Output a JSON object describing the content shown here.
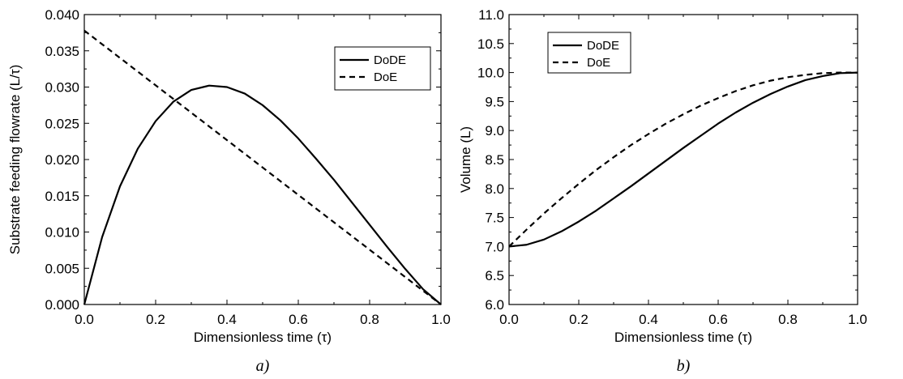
{
  "chart_data": [
    {
      "type": "line",
      "panel_label": "a)",
      "xlabel": "Dimensionless time (τ)",
      "ylabel": "Substrate feeding flowrate (L/τ)",
      "xlim": [
        0.0,
        1.0
      ],
      "ylim": [
        0.0,
        0.04
      ],
      "xticks": [
        "0.0",
        "0.2",
        "0.4",
        "0.6",
        "0.8",
        "1.0"
      ],
      "yticks": [
        "0.000",
        "0.005",
        "0.010",
        "0.015",
        "0.020",
        "0.025",
        "0.030",
        "0.035",
        "0.040"
      ],
      "grid": false,
      "legend": {
        "position": "top-right",
        "entries": [
          "DoDE",
          "DoE"
        ]
      },
      "series": [
        {
          "name": "DoDE",
          "style": "solid",
          "x": [
            0.0,
            0.05,
            0.1,
            0.15,
            0.2,
            0.25,
            0.3,
            0.35,
            0.4,
            0.45,
            0.5,
            0.55,
            0.6,
            0.65,
            0.7,
            0.75,
            0.8,
            0.85,
            0.9,
            0.95,
            1.0
          ],
          "y": [
            0.0,
            0.0093,
            0.0163,
            0.0215,
            0.0253,
            0.028,
            0.0296,
            0.0302,
            0.03,
            0.0291,
            0.0275,
            0.0254,
            0.0229,
            0.0201,
            0.0172,
            0.0141,
            0.011,
            0.0079,
            0.0049,
            0.0021,
            0.0
          ]
        },
        {
          "name": "DoE",
          "style": "dashed",
          "x": [
            0.0,
            1.0
          ],
          "y": [
            0.0378,
            0.0
          ]
        }
      ]
    },
    {
      "type": "line",
      "panel_label": "b)",
      "xlabel": "Dimensionless time (τ)",
      "ylabel": "Volume (L)",
      "xlim": [
        0.0,
        1.0
      ],
      "ylim": [
        6.0,
        11.0
      ],
      "xticks": [
        "0.0",
        "0.2",
        "0.4",
        "0.6",
        "0.8",
        "1.0"
      ],
      "yticks": [
        "6.0",
        "6.5",
        "7.0",
        "7.5",
        "8.0",
        "8.5",
        "9.0",
        "9.5",
        "10.0",
        "10.5",
        "11.0"
      ],
      "grid": false,
      "legend": {
        "position": "top-left",
        "entries": [
          "DoDE",
          "DoE"
        ]
      },
      "series": [
        {
          "name": "DoDE",
          "style": "solid",
          "x": [
            0.0,
            0.05,
            0.1,
            0.15,
            0.2,
            0.25,
            0.3,
            0.35,
            0.4,
            0.45,
            0.5,
            0.55,
            0.6,
            0.65,
            0.7,
            0.75,
            0.8,
            0.85,
            0.9,
            0.95,
            1.0
          ],
          "y": [
            7.0,
            7.03,
            7.12,
            7.26,
            7.43,
            7.62,
            7.83,
            8.04,
            8.26,
            8.48,
            8.7,
            8.91,
            9.12,
            9.31,
            9.48,
            9.63,
            9.76,
            9.87,
            9.94,
            9.99,
            10.0
          ]
        },
        {
          "name": "DoE",
          "style": "dashed",
          "x": [
            0.0,
            0.05,
            0.1,
            0.15,
            0.2,
            0.25,
            0.3,
            0.35,
            0.4,
            0.45,
            0.5,
            0.55,
            0.6,
            0.65,
            0.7,
            0.75,
            0.8,
            0.85,
            0.9,
            0.95,
            1.0
          ],
          "y": [
            7.0,
            7.29,
            7.57,
            7.83,
            8.08,
            8.32,
            8.54,
            8.75,
            8.94,
            9.12,
            9.28,
            9.43,
            9.56,
            9.68,
            9.78,
            9.86,
            9.92,
            9.96,
            9.99,
            10.0,
            10.0
          ]
        }
      ]
    }
  ]
}
